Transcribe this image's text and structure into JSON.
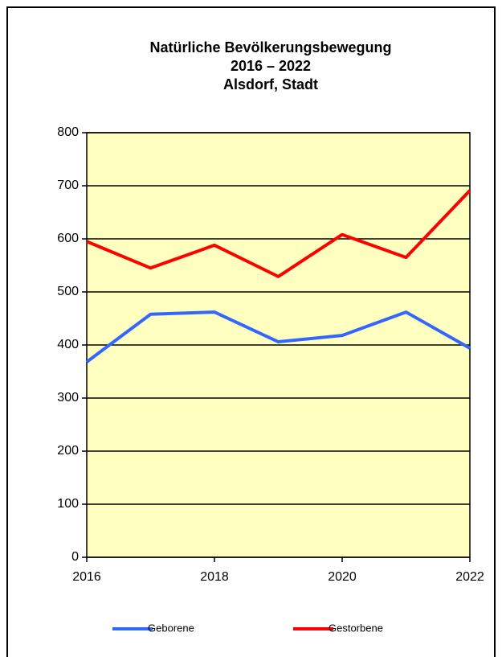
{
  "chart_data": {
    "type": "line",
    "title": [
      "Natürliche Bevölkerungsbewegung",
      "2016 – 2022",
      "Alsdorf, Stadt"
    ],
    "x": [
      2016,
      2017,
      2018,
      2019,
      2020,
      2021,
      2022
    ],
    "series": [
      {
        "name": "Geborene",
        "color": "#3366ff",
        "values": [
          368,
          458,
          462,
          406,
          418,
          462,
          394
        ]
      },
      {
        "name": "Gestorbene",
        "color": "#ff0000",
        "values": [
          595,
          545,
          588,
          529,
          608,
          565,
          691
        ]
      }
    ],
    "xlim": [
      2016,
      2022
    ],
    "xticks": [
      2016,
      2018,
      2020,
      2022
    ],
    "ylim": [
      0,
      800
    ],
    "yticks": [
      0,
      100,
      200,
      300,
      400,
      500,
      600,
      700,
      800
    ],
    "grid": true,
    "legend": "bottom",
    "plot_background": "#ffffc0"
  }
}
